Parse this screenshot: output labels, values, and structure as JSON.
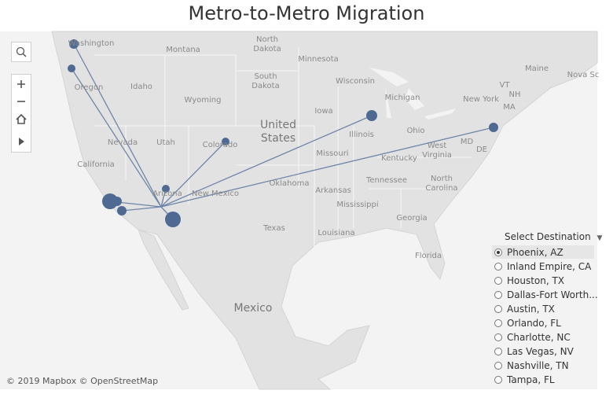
{
  "title": "Metro-to-Metro Migration",
  "map_labels": [
    [
      "Washington"
    ],
    [
      "North",
      "Dakota"
    ],
    [
      "Montana"
    ],
    [
      "Minnesota"
    ],
    [
      "Oregon"
    ],
    [
      "Idaho"
    ],
    [
      "South",
      "Dakota"
    ],
    [
      "Wisconsin"
    ],
    [
      "Michigan"
    ],
    [
      "Maine"
    ],
    [
      "Nova Sc"
    ],
    [
      "VT"
    ],
    [
      "NH"
    ],
    [
      "Wyoming"
    ],
    [
      "New York"
    ],
    [
      "MA"
    ],
    [
      "Iowa"
    ],
    [
      "Illinois"
    ],
    [
      "Ohio"
    ],
    [
      "Nevada"
    ],
    [
      "Utah"
    ],
    [
      "Colorado"
    ],
    [
      "MD"
    ],
    [
      "DE"
    ],
    [
      "West",
      "Virginia"
    ],
    [
      "California"
    ],
    [
      "Missouri"
    ],
    [
      "Kentucky"
    ],
    [
      "Oklahoma"
    ],
    [
      "Tennessee"
    ],
    [
      "North",
      "Carolina"
    ],
    [
      "Arizona"
    ],
    [
      "New Mexico"
    ],
    [
      "Arkansas"
    ],
    [
      "Mississippi"
    ],
    [
      "Georgia"
    ],
    [
      "Texas"
    ],
    [
      "Louisiana"
    ],
    [
      "Florida"
    ]
  ],
  "country_labels": [
    [
      "United",
      "States"
    ],
    [
      "Mexico"
    ]
  ],
  "destination_filter": {
    "label": "Select Destination",
    "selected": 0,
    "options": [
      "Phoenix, AZ",
      "Inland Empire, CA",
      "Houston, TX",
      "Dallas-Fort Worth...",
      "Austin, TX",
      "Orlando, FL",
      "Charlotte, NC",
      "Las Vegas, NV",
      "Nashville, TN",
      "Tampa, FL"
    ]
  },
  "attribution": "© 2019 Mapbox © OpenStreetMap"
}
